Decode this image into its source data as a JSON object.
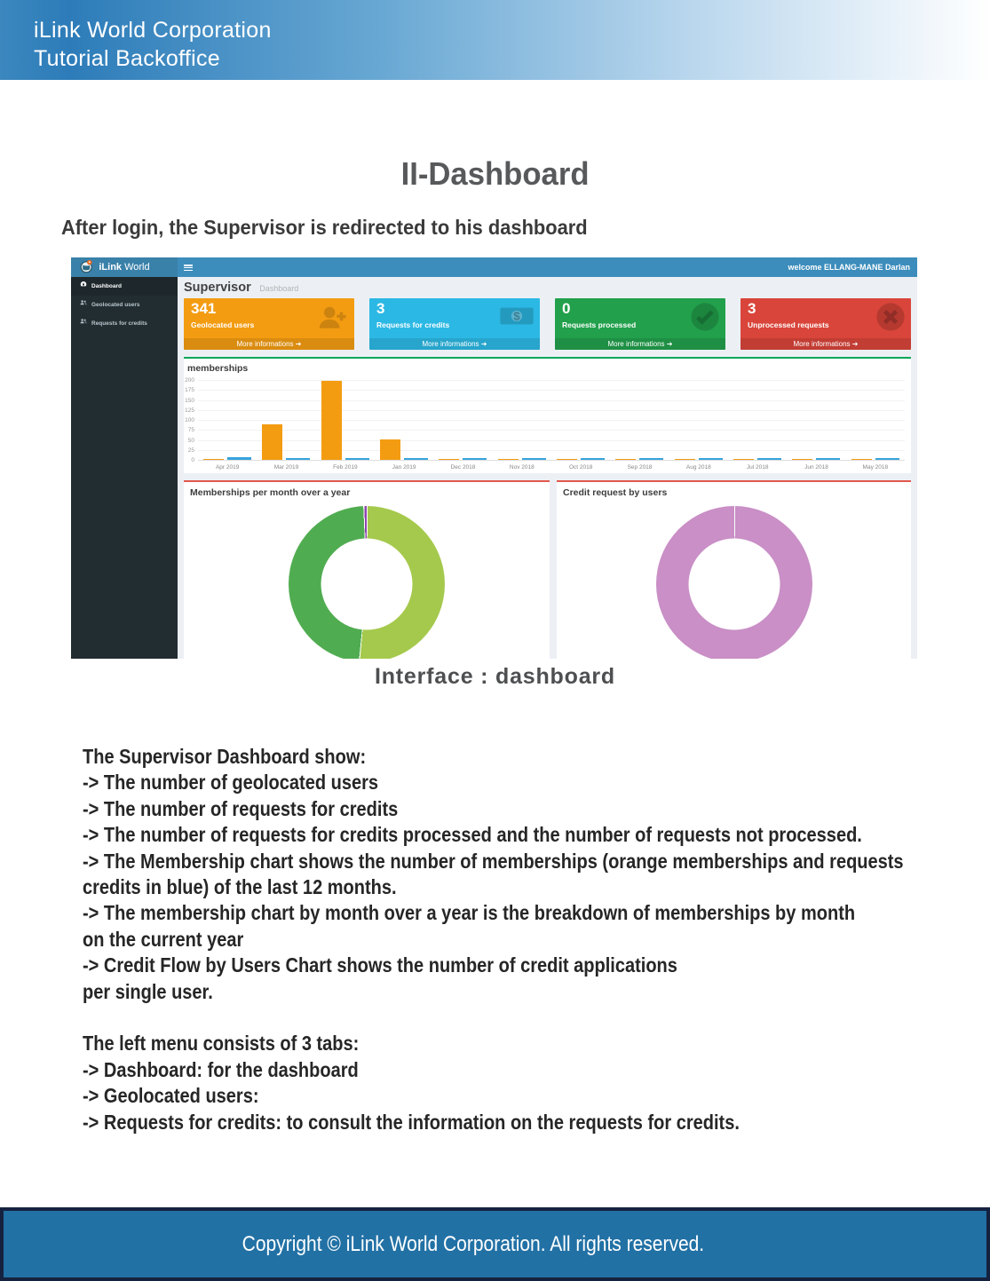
{
  "doc": {
    "header_line1": "iLink World Corporation",
    "header_line2": "Tutorial Backoffice",
    "title": "II-Dashboard",
    "intro": "After login, the Supervisor is redirected to his dashboard",
    "caption": "Interface : dashboard",
    "body_lines": [
      "The Supervisor Dashboard show:",
      "-> The number of geolocated users",
      "-> The number of requests for credits",
      "-> The number of requests for credits processed and the number of requests not processed.",
      "-> The Membership chart shows the number of memberships (orange memberships and requests",
      "credits in blue) of the last 12 months.",
      "-> The membership chart by month over a year is the breakdown of memberships by month",
      "on the current year",
      "-> Credit Flow by Users Chart shows the number of credit applications",
      "per single user.",
      "",
      "The left menu consists of 3 tabs:",
      "-> Dashboard: for the dashboard",
      "-> Geolocated users:",
      "-> Requests for credits: to consult the information on the requests for credits."
    ],
    "footer": "Copyright © iLink World Corporation. All rights reserved."
  },
  "dashboard": {
    "brand_bold": "iLink",
    "brand_regular": " World",
    "welcome": "welcome ELLANG-MANE Darlan",
    "sidebar": [
      {
        "label": "Dashboard",
        "icon": "dashboard",
        "active": true
      },
      {
        "label": "Geolocated users",
        "icon": "users",
        "active": false
      },
      {
        "label": "Requests for credits",
        "icon": "users",
        "active": false
      }
    ],
    "page_title": "Supervisor",
    "page_subtitle": "Dashboard",
    "more_label": "More informations",
    "cards": [
      {
        "value": "341",
        "label": "Geolocated users",
        "color": "#f39c12",
        "icon": "user-plus"
      },
      {
        "value": "3",
        "label": "Requests for credits",
        "color": "#2cb8e4",
        "icon": "money"
      },
      {
        "value": "0",
        "label": "Requests processed",
        "color": "#22a04c",
        "icon": "check-circle"
      },
      {
        "value": "3",
        "label": "Unprocessed requests",
        "color": "#d9453a",
        "icon": "x-circle"
      }
    ]
  },
  "chart_data": [
    {
      "type": "bar",
      "title": "memberships",
      "categories": [
        "Apr 2019",
        "Mar 2019",
        "Feb 2019",
        "Jan 2019",
        "Dec 2018",
        "Nov 2018",
        "Oct 2018",
        "Sep 2018",
        "Aug 2018",
        "Jul 2018",
        "Jun 2018",
        "May 2018"
      ],
      "series": [
        {
          "name": "memberships",
          "color": "#f39c12",
          "values": [
            2,
            90,
            198,
            52,
            2,
            2,
            2,
            2,
            2,
            2,
            3,
            2
          ]
        },
        {
          "name": "requests credits",
          "color": "#36a3dc",
          "values": [
            7,
            2,
            2,
            2,
            2,
            2,
            2,
            2,
            2,
            2,
            2,
            2
          ]
        }
      ],
      "ylim": [
        0,
        200
      ],
      "yticks": [
        0,
        25,
        50,
        75,
        100,
        125,
        150,
        175,
        200
      ],
      "grid": true,
      "legend": "none"
    },
    {
      "type": "pie",
      "title": "Memberships per month over a year",
      "slices": [
        {
          "label": "slice-1",
          "color": "#a5c94c",
          "value": 51.4
        },
        {
          "label": "slice-2",
          "color": "#50ac50",
          "value": 47.9
        },
        {
          "label": "slice-3",
          "color": "#8e44ad",
          "value": 0.7
        }
      ],
      "donut": true
    },
    {
      "type": "pie",
      "title": "Credit request by users",
      "slices": [
        {
          "label": "slice-1",
          "color": "#c98fc6",
          "value": 100
        }
      ],
      "donut": true
    }
  ]
}
